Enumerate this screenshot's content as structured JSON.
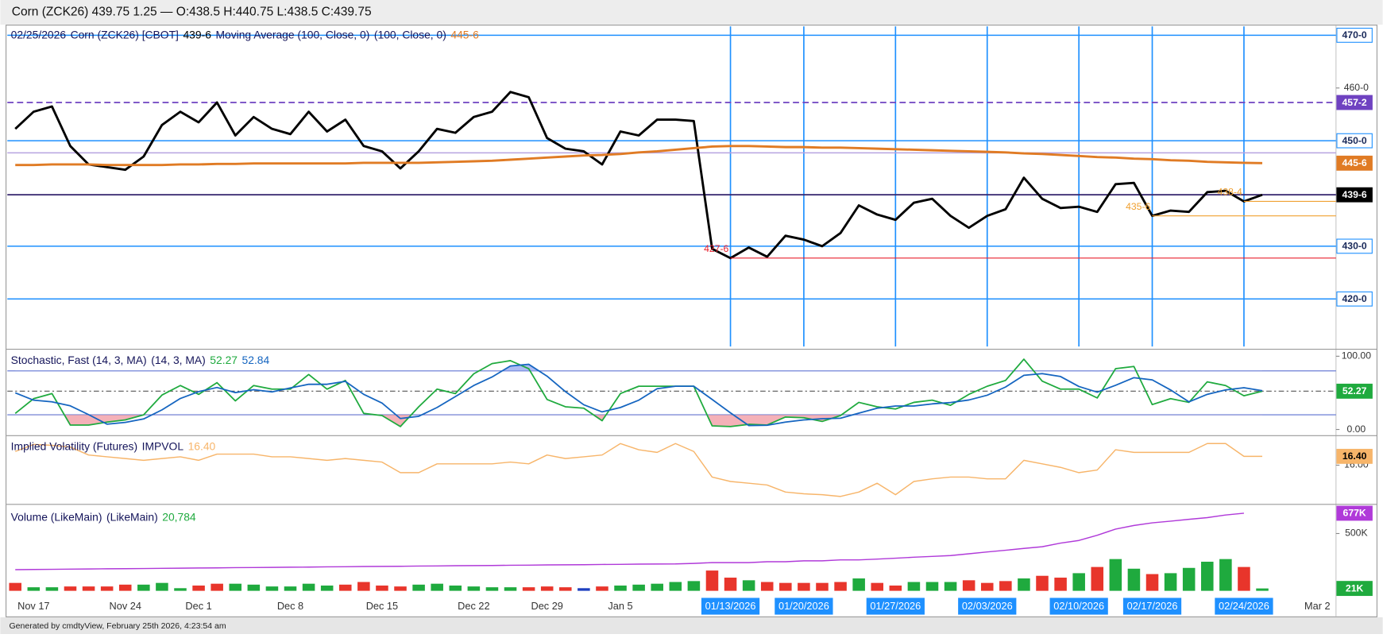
{
  "title": "Corn (ZCK26) 439.75 1.25 — O:438.5 H:440.75 L:438.5 C:439.75",
  "footer": "Generated by cmdtyView, February 25th 2026, 4:23:54 am",
  "chart_data": [
    {
      "type": "line",
      "date": "02/25/2026",
      "ylim": [
        410.64,
        471.67
      ],
      "yticks": [
        {
          "value": 460,
          "label": "460-0"
        }
      ],
      "hlines": [
        {
          "value": 470,
          "label": "470-0",
          "color": "#1e90ff",
          "filled": false
        },
        {
          "value": 450,
          "label": "450-0",
          "color": "#1e90ff",
          "filled": false
        },
        {
          "value": 430,
          "label": "430-0",
          "color": "#1e90ff",
          "filled": false
        },
        {
          "value": 420,
          "label": "420-0",
          "color": "#1e90ff",
          "filled": false
        },
        {
          "value": 457.25,
          "label": "457-2",
          "color": "#6f42c1",
          "filled": true,
          "dash": true
        },
        {
          "value": 447.7,
          "color": "#b6a3e0"
        }
      ],
      "marker_color": "#1e90ff",
      "series": [
        {
          "name": "Corn (ZCK26) [CBOT]",
          "color": "#000000",
          "last_label": "439-6",
          "tag": true,
          "last_line": {
            "color": "#35256e"
          },
          "values": [
            452.25,
            455.5,
            456.5,
            449,
            445.5,
            445,
            444.5,
            447,
            453,
            455.5,
            453.5,
            457.25,
            451,
            454.5,
            452.25,
            451.25,
            455.5,
            451.75,
            454,
            449,
            448,
            444.75,
            448,
            452.25,
            451.5,
            454.5,
            455.5,
            459.25,
            458.25,
            450.5,
            448.5,
            448,
            445.5,
            451.75,
            451,
            454,
            454,
            453.75,
            429.5,
            427.75,
            429.75,
            428,
            432,
            431.25,
            430,
            432.5,
            437.75,
            436,
            435,
            438.25,
            439,
            435.75,
            433.5,
            435.75,
            437,
            443,
            439,
            437.25,
            437.5,
            436.5,
            441.75,
            442,
            435.75,
            436.75,
            436.5,
            440.25,
            440.5,
            438.5,
            439.75,
            null,
            null,
            null
          ],
          "value_labels": [
            null,
            null,
            null,
            null,
            null,
            null,
            null,
            null,
            null,
            null,
            null,
            null,
            null,
            null,
            null,
            null,
            null,
            null,
            null,
            null,
            null,
            null,
            null,
            null,
            null,
            null,
            null,
            null,
            null,
            null,
            null,
            null,
            null,
            null,
            null,
            null,
            null,
            null,
            null,
            "427-6",
            null,
            null,
            null,
            null,
            null,
            null,
            null,
            null,
            null,
            null,
            null,
            null,
            null,
            null,
            null,
            null,
            null,
            null,
            null,
            null,
            null,
            null,
            "435-6",
            null,
            null,
            null,
            null,
            "438-4",
            null,
            null,
            null,
            null
          ],
          "value_label_colors": [
            null,
            null,
            null,
            null,
            null,
            null,
            null,
            null,
            null,
            null,
            null,
            null,
            null,
            null,
            null,
            null,
            null,
            null,
            null,
            null,
            null,
            null,
            null,
            null,
            null,
            null,
            null,
            null,
            null,
            null,
            null,
            null,
            null,
            null,
            null,
            null,
            null,
            null,
            null,
            "#e8202e",
            null,
            null,
            null,
            null,
            null,
            null,
            null,
            null,
            null,
            null,
            null,
            null,
            null,
            null,
            null,
            null,
            null,
            null,
            null,
            null,
            null,
            null,
            "#f0a030",
            null,
            null,
            null,
            null,
            "#f0a030",
            null,
            null,
            null,
            null
          ]
        },
        {
          "name": "Moving Average (100, Close, 0)",
          "params": "(100, Close, 0)",
          "color": "#e07b24",
          "last_label": "445-6",
          "tag": true,
          "values": [
            445.4,
            445.4,
            445.5,
            445.5,
            445.5,
            445.4,
            445.4,
            445.4,
            445.4,
            445.5,
            445.5,
            445.6,
            445.6,
            445.7,
            445.7,
            445.7,
            445.7,
            445.7,
            445.7,
            445.8,
            445.8,
            445.8,
            445.8,
            445.9,
            446,
            446.1,
            446.2,
            446.4,
            446.6,
            446.8,
            447,
            447.2,
            447.3,
            447.5,
            447.8,
            448,
            448.3,
            448.6,
            448.9,
            449,
            449,
            448.9,
            448.8,
            448.8,
            448.7,
            448.7,
            448.6,
            448.5,
            448.4,
            448.3,
            448.2,
            448.1,
            448,
            447.9,
            447.8,
            447.6,
            447.5,
            447.3,
            447.1,
            446.9,
            446.8,
            446.6,
            446.5,
            446.3,
            446.2,
            446,
            445.9,
            445.8,
            445.75,
            null,
            null,
            null
          ]
        }
      ]
    },
    {
      "type": "line",
      "title": "Stochastic, Fast (14, 3, MA)",
      "params": "(14, 3, MA)",
      "ylim": [
        -7.2,
        108.4
      ],
      "yticks": [
        {
          "value": 100,
          "label": "100.00"
        },
        {
          "value": 0,
          "label": "0.00"
        }
      ],
      "levels": [
        80,
        20
      ],
      "level_color": "#5a6fd0",
      "overbought_fill": "#9fb0f2",
      "oversold_fill": "#f2a3ab",
      "series": [
        {
          "color": "#1faa3e",
          "last_label": "52.27",
          "tag": true,
          "last_line": {
            "color": "#555555",
            "dash": true
          },
          "values": [
            22,
            42,
            49,
            6,
            6,
            10,
            13,
            20,
            47,
            60,
            48,
            64,
            39,
            60,
            55,
            55,
            75,
            55,
            67,
            22,
            19,
            4,
            31,
            55,
            49,
            76,
            90,
            94,
            83,
            41,
            31,
            29,
            12,
            49,
            59,
            59,
            59,
            59,
            5,
            4,
            7,
            6,
            17,
            16,
            11,
            19,
            37,
            31,
            28,
            37,
            40,
            33,
            48,
            59,
            67,
            96,
            66,
            55,
            55,
            43,
            83,
            86,
            34,
            42,
            37,
            65,
            60,
            46,
            52.27,
            null,
            null,
            null
          ]
        },
        {
          "color": "#1565c0",
          "last_label": "52.84",
          "values": [
            50,
            40,
            37.7,
            32.3,
            20.3,
            7.3,
            9.7,
            14.3,
            26.7,
            42.3,
            51.7,
            57.3,
            50.3,
            54.3,
            51.3,
            56.7,
            61.7,
            61.7,
            65.7,
            48,
            36,
            15,
            18,
            30,
            45,
            60,
            71.7,
            86.7,
            89,
            72.7,
            51.7,
            33.7,
            24,
            30,
            40,
            55.7,
            59,
            59,
            41,
            22.7,
            5.3,
            5.7,
            10,
            13,
            14.7,
            15.3,
            22.3,
            29,
            32,
            32,
            35,
            36.7,
            40.3,
            46.7,
            58,
            74,
            76.3,
            72.3,
            58.7,
            51,
            60.3,
            70.7,
            67.7,
            54,
            37.7,
            48,
            54,
            57,
            52.84,
            null,
            null,
            null
          ]
        }
      ]
    },
    {
      "type": "line",
      "title": "Implied Volatility (Futures)",
      "params": "IMPVOL",
      "ylim": [
        14.26,
        17.3
      ],
      "yticks": [
        {
          "value": 16,
          "label": "16.00"
        }
      ],
      "series": [
        {
          "color": "#f7b56a",
          "last_label": "16.40",
          "tag": true,
          "tag_text_color": "#000000",
          "values": [
            16.62,
            16.94,
            16.9,
            16.82,
            16.46,
            16.38,
            16.3,
            16.22,
            16.3,
            16.38,
            16.22,
            16.5,
            16.5,
            16.5,
            16.38,
            16.38,
            16.3,
            16.22,
            16.3,
            16.22,
            16.14,
            15.66,
            15.66,
            16.06,
            16.06,
            16.06,
            16.06,
            16.14,
            16.06,
            16.46,
            16.3,
            16.38,
            16.46,
            16.98,
            16.7,
            16.58,
            16.98,
            16.62,
            15.46,
            15.26,
            15.18,
            15.1,
            14.78,
            14.7,
            14.66,
            14.58,
            14.78,
            15.18,
            14.66,
            15.26,
            15.38,
            15.46,
            15.46,
            15.38,
            15.38,
            16.22,
            16.06,
            15.9,
            15.66,
            15.78,
            16.7,
            16.58,
            16.58,
            16.58,
            16.58,
            16.98,
            16.98,
            16.4,
            16.4,
            null,
            null,
            null
          ]
        }
      ]
    },
    {
      "type": "bar",
      "title": "Volume (LikeMain)",
      "params": "(LikeMain)",
      "ylim": [
        0,
        731000
      ],
      "yticks": [
        {
          "value": 500000,
          "label": "500K"
        }
      ],
      "categories": [
        null,
        "Nov 17",
        null,
        null,
        null,
        null,
        "Nov 24",
        null,
        null,
        null,
        "Dec 1",
        null,
        null,
        null,
        null,
        "Dec 8",
        null,
        null,
        null,
        null,
        "Dec 15",
        null,
        null,
        null,
        null,
        "Dec 22",
        null,
        null,
        null,
        "Dec 29",
        null,
        null,
        null,
        "Jan 5",
        null,
        null,
        null,
        null,
        null,
        "01/13/2026",
        null,
        null,
        null,
        "01/20/2026",
        null,
        null,
        null,
        null,
        "01/27/2026",
        null,
        null,
        null,
        null,
        "02/03/2026",
        null,
        null,
        null,
        null,
        "02/10/2026",
        null,
        null,
        null,
        "02/17/2026",
        null,
        null,
        null,
        null,
        "02/24/2026",
        null,
        null,
        null,
        "Mar 2"
      ],
      "series": [
        {
          "type": "bar",
          "color": "#1faa3e",
          "last_label": "20,784",
          "tag": "21K",
          "values": [
            69000,
            31000,
            31000,
            38000,
            38000,
            38000,
            54000,
            54000,
            69000,
            23000,
            46000,
            62000,
            62000,
            54000,
            38000,
            38000,
            62000,
            46000,
            54000,
            77000,
            46000,
            38000,
            54000,
            62000,
            46000,
            38000,
            31000,
            31000,
            31000,
            38000,
            31000,
            23000,
            38000,
            46000,
            54000,
            62000,
            77000,
            85000,
            177000,
            115000,
            92000,
            77000,
            69000,
            69000,
            69000,
            77000,
            108000,
            69000,
            46000,
            77000,
            77000,
            77000,
            92000,
            69000,
            85000,
            108000,
            131000,
            115000,
            154000,
            208000,
            277000,
            193000,
            146000,
            154000,
            200000,
            254000,
            277000,
            208000,
            20784,
            null,
            null,
            null
          ],
          "colors": [
            "#e8352b",
            "#1faa3e",
            "#1faa3e",
            "#e8352b",
            "#e8352b",
            "#e8352b",
            "#e8352b",
            "#1faa3e",
            "#1faa3e",
            "#1faa3e",
            "#e8352b",
            "#e8352b",
            "#1faa3e",
            "#1faa3e",
            "#1faa3e",
            "#1faa3e",
            "#1faa3e",
            "#1faa3e",
            "#e8352b",
            "#e8352b",
            "#e8352b",
            "#e8352b",
            "#1faa3e",
            "#1faa3e",
            "#1faa3e",
            "#1faa3e",
            "#1faa3e",
            "#1faa3e",
            "#e8352b",
            "#e8352b",
            "#e8352b",
            "#1e3fbf",
            "#e8352b",
            "#1faa3e",
            "#1faa3e",
            "#1faa3e",
            "#1faa3e",
            "#1faa3e",
            "#e8352b",
            "#e8352b",
            "#1faa3e",
            "#e8352b",
            "#e8352b",
            "#e8352b",
            "#e8352b",
            "#e8352b",
            "#1faa3e",
            "#e8352b",
            "#e8352b",
            "#1faa3e",
            "#1faa3e",
            "#1faa3e",
            "#e8352b",
            "#e8352b",
            "#e8352b",
            "#1faa3e",
            "#e8352b",
            "#e8352b",
            "#1faa3e",
            "#e8352b",
            "#1faa3e",
            "#1faa3e",
            "#e8352b",
            "#1faa3e",
            "#1faa3e",
            "#1faa3e",
            "#1faa3e",
            "#e8352b",
            "#1faa3e",
            null,
            null,
            null
          ]
        },
        {
          "type": "line",
          "color": "#b03ad9",
          "tag": "677K",
          "values": [
            185000,
            186000,
            188000,
            189000,
            191000,
            192000,
            193000,
            195000,
            196000,
            198000,
            199000,
            200000,
            202000,
            203000,
            205000,
            206000,
            207000,
            209000,
            210000,
            212000,
            213000,
            214000,
            216000,
            217000,
            219000,
            220000,
            221000,
            223000,
            224000,
            226000,
            227000,
            228000,
            230000,
            231000,
            233000,
            234000,
            235000,
            239000,
            246000,
            246000,
            246000,
            254000,
            254000,
            262000,
            262000,
            270000,
            270000,
            277000,
            285000,
            293000,
            300000,
            308000,
            323000,
            339000,
            354000,
            370000,
            385000,
            416000,
            439000,
            485000,
            539000,
            570000,
            593000,
            608000,
            624000,
            639000,
            662000,
            677000,
            null,
            null,
            null,
            null
          ]
        }
      ]
    }
  ]
}
